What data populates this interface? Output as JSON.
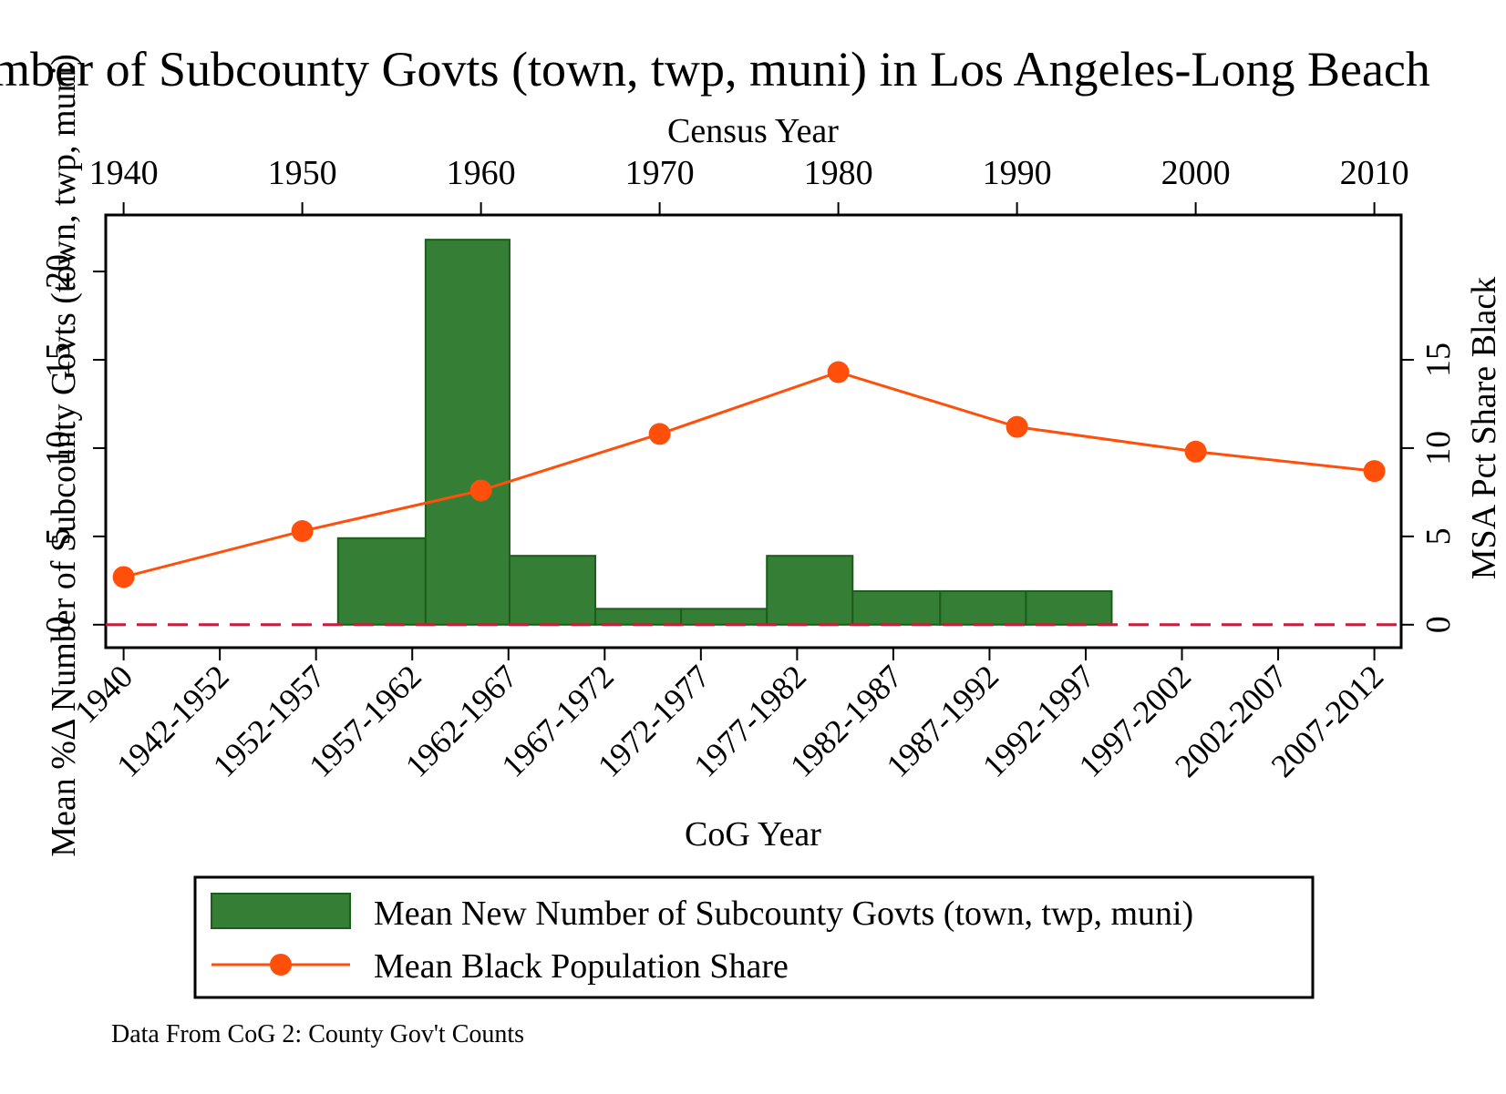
{
  "chart_data": {
    "type": "bar",
    "title": "mber of Subcounty Govts (town, twp, muni) in Los Angeles-Long Beach",
    "top_axis": {
      "label": "Census Year",
      "ticks": [
        "1940",
        "1950",
        "1960",
        "1970",
        "1980",
        "1990",
        "2000",
        "2010"
      ],
      "range": [
        1939,
        2011.5
      ]
    },
    "bottom_axis": {
      "label": "CoG Year",
      "categories": [
        "1940",
        "1942-1952",
        "1952-1957",
        "1957-1962",
        "1962-1967",
        "1967-1972",
        "1972-1977",
        "1977-1982",
        "1982-1987",
        "1987-1992",
        "1992-1997",
        "1997-2002",
        "2002-2007",
        "2007-2012"
      ]
    },
    "left_axis": {
      "label": "Mean %Δ Number of Subcounty Govts (town, twp, muni)",
      "ticks": [
        "0",
        "5",
        "10",
        "15",
        "20"
      ],
      "range": [
        -1.3,
        23.2
      ]
    },
    "right_axis": {
      "label": "MSA Pct Share Black",
      "ticks": [
        "0",
        "5",
        "10",
        "15"
      ],
      "range": [
        -1.3,
        23.2
      ]
    },
    "bars": {
      "name": "Mean New Number of Subcounty Govts (town, twp, muni)",
      "color": "#357e35",
      "edge_color": "#1b5e1b",
      "bins": [
        {
          "x0": 1952,
          "x1": 1956.9,
          "value": 4.9
        },
        {
          "x0": 1956.9,
          "x1": 1961.6,
          "value": 21.8
        },
        {
          "x0": 1961.6,
          "x1": 1966.4,
          "value": 3.9
        },
        {
          "x0": 1966.4,
          "x1": 1971.2,
          "value": 0.9
        },
        {
          "x0": 1971.2,
          "x1": 1976,
          "value": 0.9
        },
        {
          "x0": 1976,
          "x1": 1980.8,
          "value": 3.9
        },
        {
          "x0": 1980.8,
          "x1": 1985.7,
          "value": 1.9
        },
        {
          "x0": 1985.7,
          "x1": 1990.5,
          "value": 1.9
        },
        {
          "x0": 1990.5,
          "x1": 1995.3,
          "value": 1.9
        }
      ]
    },
    "line": {
      "name": "Mean Black Population Share",
      "color": "#ff4f0a",
      "x": [
        1940,
        1950,
        1960,
        1970,
        1980,
        1990,
        2000,
        2010
      ],
      "y": [
        2.7,
        5.3,
        7.6,
        10.8,
        14.3,
        11.2,
        9.8,
        8.7
      ]
    },
    "reference_line": {
      "y": 0,
      "color": "#cc1a3d",
      "style": "dashed"
    },
    "legend": {
      "placement": "bottom"
    },
    "note": "Data From CoG 2: County Gov't Counts"
  }
}
